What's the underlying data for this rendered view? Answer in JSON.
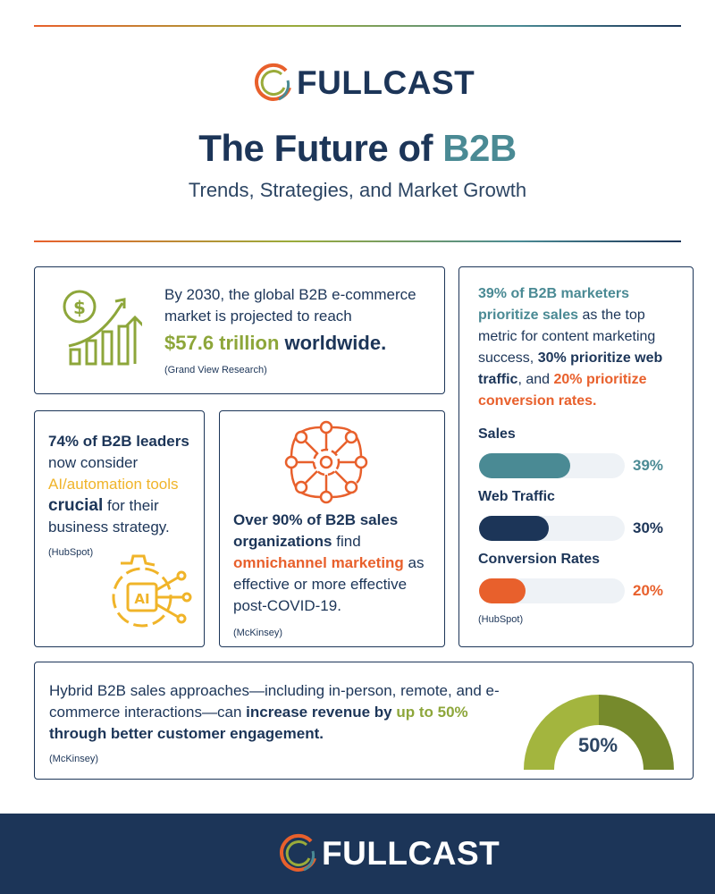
{
  "brand": {
    "name": "FULLCAST"
  },
  "header": {
    "title_main": "The Future of ",
    "title_accent": "B2B",
    "subtitle": "Trends, Strategies, and Market Growth"
  },
  "stat_market": {
    "line1": "By 2030, the global B2B e-commerce market is projected to reach",
    "value": "$57.6 trillion",
    "value_suffix": " worldwide.",
    "source": "(Grand View Research)"
  },
  "stat_ai": {
    "pct": "74% of B2B leaders",
    "t1": " now consider ",
    "highlight": "AI/automation tools",
    "crucial": "crucial",
    "t2": " for their business strategy.",
    "source": "(HubSpot)",
    "icon_text": "AI"
  },
  "stat_omni": {
    "bold1": "Over 90% of B2B sales organizations",
    "t1": " find ",
    "highlight": "omnichannel marketing",
    "t2": " as effective or more effective post-COVID-19.",
    "source": "(McKinsey)"
  },
  "stat_metrics": {
    "p1": "39% of B2B marketers prioritize sales",
    "t1": " as the top metric for content marketing success, ",
    "p2": "30% prioritize web traffic",
    "t2": ", and ",
    "p3": "20% prioritize conversion rates.",
    "source": "(HubSpot)",
    "bars": [
      {
        "label": "Sales",
        "value": 39,
        "display": "39%",
        "color": "#4a8a94"
      },
      {
        "label": "Web Traffic",
        "value": 30,
        "display": "30%",
        "color": "#1c3558"
      },
      {
        "label": "Conversion Rates",
        "value": 20,
        "display": "20%",
        "color": "#e8602c"
      }
    ]
  },
  "stat_hybrid": {
    "t1": "Hybrid B2B sales approaches—including in-person, remote, and e-commerce interactions—can ",
    "bold1": "increase revenue by ",
    "highlight": "up to 50%",
    "bold2": " through better customer engagement.",
    "source": "(McKinsey)",
    "gauge_value": 50,
    "gauge_label": "50%"
  }
}
